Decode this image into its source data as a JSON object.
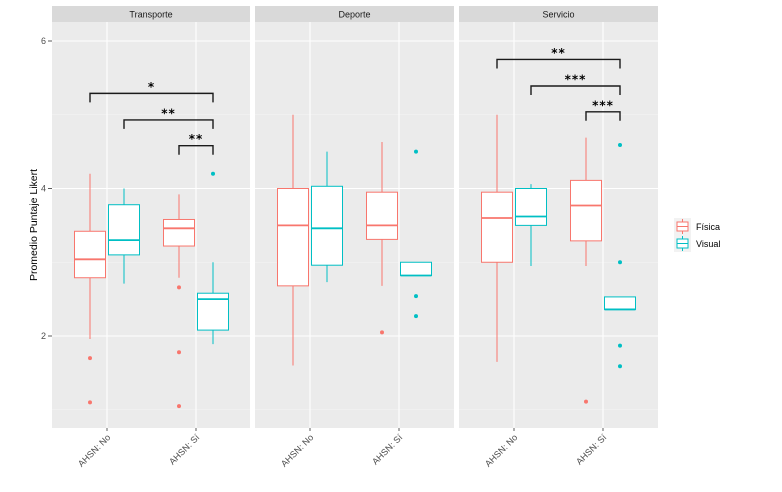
{
  "chart_data": {
    "type": "boxplot",
    "title": "",
    "xlabel": "",
    "ylabel": "Promedio Puntaje Likert",
    "ylim": [
      0.85,
      6.3
    ],
    "yticks": [
      2,
      4,
      6
    ],
    "grid": true,
    "facets": [
      "Transporte",
      "Deporte",
      "Servicio"
    ],
    "categories": [
      "AHSN: No",
      "AHSN: Sí"
    ],
    "legend": {
      "position": "right",
      "entries": [
        {
          "name": "Física",
          "color": "#F8766D"
        },
        {
          "name": "Visual",
          "color": "#00BFC4"
        }
      ]
    },
    "panels": [
      {
        "facet": "Transporte",
        "boxes": [
          {
            "category": "AHSN: No",
            "group": "Física",
            "whisker_low": 1.96,
            "q1": 2.79,
            "median": 3.04,
            "q3": 3.42,
            "whisker_high": 4.2,
            "outliers": [
              1.7,
              1.1
            ]
          },
          {
            "category": "AHSN: No",
            "group": "Visual",
            "whisker_low": 2.71,
            "q1": 3.1,
            "median": 3.3,
            "q3": 3.78,
            "whisker_high": 4.0,
            "outliers": []
          },
          {
            "category": "AHSN: Sí",
            "group": "Física",
            "whisker_low": 2.79,
            "q1": 3.22,
            "median": 3.46,
            "q3": 3.58,
            "whisker_high": 3.92,
            "outliers": [
              2.66,
              1.78,
              1.05
            ]
          },
          {
            "category": "AHSN: Sí",
            "group": "Visual",
            "whisker_low": 1.89,
            "q1": 2.08,
            "median": 2.5,
            "q3": 2.58,
            "whisker_high": 3.0,
            "outliers": [
              4.2
            ]
          }
        ],
        "significance": [
          {
            "from": [
              "AHSN: No",
              "Física"
            ],
            "to": [
              "AHSN: Sí",
              "Visual"
            ],
            "y": 5.29,
            "label": "*"
          },
          {
            "from": [
              "AHSN: No",
              "Visual"
            ],
            "to": [
              "AHSN: Sí",
              "Visual"
            ],
            "y": 4.93,
            "label": "**"
          },
          {
            "from": [
              "AHSN: Sí",
              "Física"
            ],
            "to": [
              "AHSN: Sí",
              "Visual"
            ],
            "y": 4.58,
            "label": "**"
          }
        ]
      },
      {
        "facet": "Deporte",
        "boxes": [
          {
            "category": "AHSN: No",
            "group": "Física",
            "whisker_low": 1.6,
            "q1": 2.68,
            "median": 3.5,
            "q3": 4.0,
            "whisker_high": 5.0,
            "outliers": []
          },
          {
            "category": "AHSN: No",
            "group": "Visual",
            "whisker_low": 2.73,
            "q1": 2.96,
            "median": 3.46,
            "q3": 4.03,
            "whisker_high": 4.5,
            "outliers": []
          },
          {
            "category": "AHSN: Sí",
            "group": "Física",
            "whisker_low": 2.68,
            "q1": 3.31,
            "median": 3.5,
            "q3": 3.95,
            "whisker_high": 4.63,
            "outliers": [
              2.05
            ]
          },
          {
            "category": "AHSN: Sí",
            "group": "Visual",
            "whisker_low": 2.82,
            "q1": 2.82,
            "median": 2.82,
            "q3": 3.0,
            "whisker_high": 3.0,
            "outliers": [
              4.5,
              2.54,
              2.27
            ]
          }
        ],
        "significance": []
      },
      {
        "facet": "Servicio",
        "boxes": [
          {
            "category": "AHSN: No",
            "group": "Física",
            "whisker_low": 1.65,
            "q1": 3.0,
            "median": 3.6,
            "q3": 3.95,
            "whisker_high": 5.0,
            "outliers": []
          },
          {
            "category": "AHSN: No",
            "group": "Visual",
            "whisker_low": 2.95,
            "q1": 3.5,
            "median": 3.62,
            "q3": 4.0,
            "whisker_high": 4.06,
            "outliers": []
          },
          {
            "category": "AHSN: Sí",
            "group": "Física",
            "whisker_low": 2.95,
            "q1": 3.29,
            "median": 3.77,
            "q3": 4.11,
            "whisker_high": 4.69,
            "outliers": [
              1.11
            ]
          },
          {
            "category": "AHSN: Sí",
            "group": "Visual",
            "whisker_low": 2.36,
            "q1": 2.36,
            "median": 2.36,
            "q3": 2.53,
            "whisker_high": 2.53,
            "outliers": [
              4.59,
              3.0,
              1.87,
              1.59
            ]
          }
        ],
        "significance": [
          {
            "from": [
              "AHSN: No",
              "Física"
            ],
            "to": [
              "AHSN: Sí",
              "Visual"
            ],
            "y": 5.75,
            "label": "**"
          },
          {
            "from": [
              "AHSN: No",
              "Visual"
            ],
            "to": [
              "AHSN: Sí",
              "Visual"
            ],
            "y": 5.39,
            "label": "***"
          },
          {
            "from": [
              "AHSN: Sí",
              "Física"
            ],
            "to": [
              "AHSN: Sí",
              "Visual"
            ],
            "y": 5.04,
            "label": "***"
          }
        ]
      }
    ]
  }
}
